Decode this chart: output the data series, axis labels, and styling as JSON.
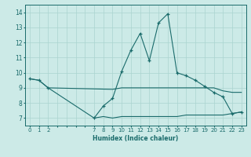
{
  "xlabel": "Humidex (Indice chaleur)",
  "bg_color": "#cceae7",
  "grid_color": "#aad4d0",
  "line_color": "#1a6b6b",
  "xlim": [
    -0.5,
    23.5
  ],
  "ylim": [
    6.5,
    14.5
  ],
  "xticks": [
    0,
    1,
    2,
    7,
    8,
    9,
    10,
    11,
    12,
    13,
    14,
    15,
    16,
    17,
    18,
    19,
    20,
    21,
    22,
    23
  ],
  "yticks": [
    7,
    8,
    9,
    10,
    11,
    12,
    13,
    14
  ],
  "line1_x": [
    0,
    1,
    2,
    7,
    8,
    9,
    10,
    11,
    12,
    13,
    14,
    15,
    16,
    17,
    18,
    19,
    20,
    21,
    22,
    23
  ],
  "line1_y": [
    9.6,
    9.5,
    9.0,
    7.0,
    7.8,
    8.3,
    10.1,
    11.5,
    12.6,
    10.8,
    13.3,
    13.9,
    10.0,
    9.8,
    9.5,
    9.1,
    8.7,
    8.4,
    7.3,
    7.4
  ],
  "line2_x": [
    0,
    1,
    2,
    9,
    10,
    11,
    12,
    13,
    14,
    15,
    16,
    17,
    18,
    19,
    20,
    21,
    22,
    23
  ],
  "line2_y": [
    9.6,
    9.5,
    9.0,
    8.9,
    9.0,
    9.0,
    9.0,
    9.0,
    9.0,
    9.0,
    9.0,
    9.0,
    9.0,
    9.0,
    9.0,
    8.8,
    8.7,
    8.7
  ],
  "line3_x": [
    7,
    8,
    9,
    10,
    11,
    12,
    13,
    14,
    15,
    16,
    17,
    18,
    19,
    20,
    21,
    22,
    23
  ],
  "line3_y": [
    7.0,
    7.1,
    7.0,
    7.1,
    7.1,
    7.1,
    7.1,
    7.1,
    7.1,
    7.1,
    7.2,
    7.2,
    7.2,
    7.2,
    7.2,
    7.3,
    7.4
  ]
}
